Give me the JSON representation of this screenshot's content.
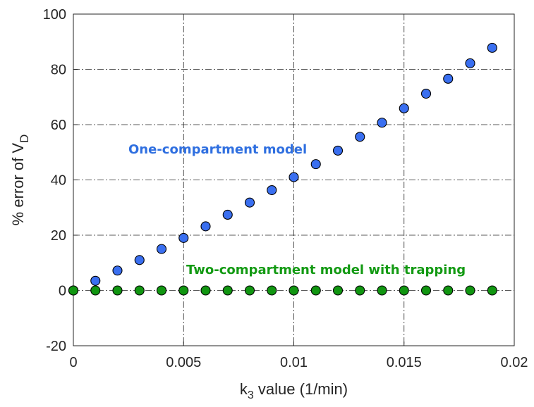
{
  "chart_data": {
    "type": "scatter",
    "xlabel": {
      "main": "k",
      "subscript": "3",
      "rest": " value (1/min)"
    },
    "ylabel": {
      "main": "% error of V",
      "subscript": "D"
    },
    "xlim": [
      0,
      0.02
    ],
    "ylim": [
      -20,
      100
    ],
    "x_ticks": [
      0,
      0.005,
      0.01,
      0.015,
      0.02
    ],
    "x_tick_labels": [
      "0",
      "0.005",
      "0.01",
      "0.015",
      "0.02"
    ],
    "y_ticks": [
      -20,
      0,
      20,
      40,
      60,
      80,
      100
    ],
    "y_tick_labels": [
      "-20",
      "0",
      "20",
      "40",
      "60",
      "80",
      "100"
    ],
    "grid": true,
    "grid_style": "dash-dot",
    "series": [
      {
        "name": "One-compartment model",
        "color": "#3a6ff0",
        "label_color": "#2f6fe0",
        "x": [
          0,
          0.001,
          0.002,
          0.003,
          0.004,
          0.005,
          0.006,
          0.007,
          0.008,
          0.009,
          0.01,
          0.011,
          0.012,
          0.013,
          0.014,
          0.015,
          0.016,
          0.017,
          0.018,
          0.019
        ],
        "y": [
          0,
          3.5,
          7.2,
          11.0,
          15.0,
          19.0,
          23.2,
          27.4,
          31.8,
          36.3,
          41.0,
          45.7,
          50.6,
          55.6,
          60.7,
          65.9,
          71.2,
          76.6,
          82.2,
          87.8
        ]
      },
      {
        "name": "Two-compartment model with trapping",
        "color": "#119611",
        "label_color": "#139a13",
        "x": [
          0,
          0.001,
          0.002,
          0.003,
          0.004,
          0.005,
          0.006,
          0.007,
          0.008,
          0.009,
          0.01,
          0.011,
          0.012,
          0.013,
          0.014,
          0.015,
          0.016,
          0.017,
          0.018,
          0.019
        ],
        "y": [
          0,
          0,
          0,
          0,
          0,
          0,
          0,
          0,
          0,
          0,
          0,
          0,
          0,
          0,
          0,
          0,
          0,
          0,
          0,
          0
        ]
      }
    ]
  }
}
